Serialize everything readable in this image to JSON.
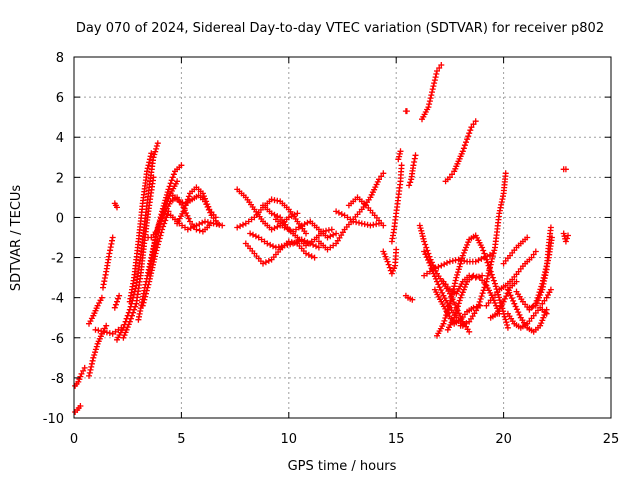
{
  "chart_data": {
    "type": "scatter",
    "title": "Day 070 of 2024, Sidereal Day-to-day VTEC variation (SDTVAR) for receiver p802",
    "xlabel": "GPS time / hours",
    "ylabel": "SDTVAR / TECUs",
    "xlim": [
      0,
      25
    ],
    "ylim": [
      -10,
      8
    ],
    "xticks": [
      0,
      5,
      10,
      15,
      20,
      25
    ],
    "yticks": [
      -10,
      -8,
      -6,
      -4,
      -2,
      0,
      2,
      4,
      6,
      8
    ],
    "grid": true,
    "marker": "plus",
    "color": "#ff0000",
    "tracks": [
      [
        [
          0.05,
          -9.7
        ],
        [
          0.15,
          -9.6
        ],
        [
          0.3,
          -9.4
        ]
      ],
      [
        [
          0.05,
          -8.4
        ],
        [
          0.2,
          -8.2
        ],
        [
          0.35,
          -7.8
        ],
        [
          0.5,
          -7.5
        ]
      ],
      [
        [
          0.7,
          -7.9
        ],
        [
          0.9,
          -7.0
        ],
        [
          1.1,
          -6.3
        ],
        [
          1.3,
          -5.8
        ],
        [
          1.5,
          -5.4
        ]
      ],
      [
        [
          0.7,
          -5.3
        ],
        [
          0.9,
          -4.9
        ],
        [
          1.1,
          -4.4
        ],
        [
          1.3,
          -4.0
        ]
      ],
      [
        [
          1.35,
          -3.5
        ],
        [
          1.5,
          -2.7
        ],
        [
          1.65,
          -1.8
        ],
        [
          1.8,
          -1.0
        ]
      ],
      [
        [
          1.0,
          -5.6
        ],
        [
          1.4,
          -5.7
        ],
        [
          1.8,
          -5.8
        ],
        [
          2.2,
          -5.5
        ]
      ],
      [
        [
          1.9,
          -4.5
        ],
        [
          2.0,
          -4.2
        ],
        [
          2.1,
          -3.9
        ]
      ],
      [
        [
          1.9,
          0.7
        ],
        [
          2.0,
          0.5
        ]
      ],
      [
        [
          2.0,
          -6.1
        ],
        [
          2.3,
          -5.5
        ],
        [
          2.6,
          -4.6
        ],
        [
          2.9,
          -3.4
        ],
        [
          3.1,
          -2.0
        ],
        [
          3.3,
          -0.2
        ],
        [
          3.5,
          1.5
        ],
        [
          3.7,
          3.0
        ],
        [
          3.9,
          3.7
        ]
      ],
      [
        [
          2.3,
          -6.0
        ],
        [
          2.6,
          -5.2
        ],
        [
          2.9,
          -4.3
        ],
        [
          3.1,
          -2.9
        ],
        [
          3.3,
          -1.0
        ],
        [
          3.5,
          0.6
        ],
        [
          3.7,
          2.0
        ]
      ],
      [
        [
          2.6,
          -4.2
        ],
        [
          2.8,
          -3.0
        ],
        [
          3.0,
          -1.2
        ],
        [
          3.2,
          0.7
        ],
        [
          3.4,
          2.3
        ],
        [
          3.6,
          3.2
        ]
      ],
      [
        [
          3.0,
          -5.1
        ],
        [
          3.3,
          -3.5
        ],
        [
          3.6,
          -2.0
        ],
        [
          3.9,
          -0.5
        ],
        [
          4.2,
          0.4
        ],
        [
          4.5,
          1.2
        ],
        [
          4.8,
          1.8
        ]
      ],
      [
        [
          3.2,
          -4.4
        ],
        [
          3.5,
          -3.2
        ],
        [
          3.8,
          -1.8
        ],
        [
          4.1,
          -0.6
        ],
        [
          4.4,
          0.3
        ]
      ],
      [
        [
          3.5,
          -2.8
        ],
        [
          3.8,
          -1.0
        ],
        [
          4.1,
          0.3
        ],
        [
          4.4,
          1.4
        ],
        [
          4.7,
          2.3
        ],
        [
          5.0,
          2.6
        ]
      ],
      [
        [
          3.3,
          -1.0
        ],
        [
          3.6,
          -1.0
        ],
        [
          3.9,
          -0.6
        ],
        [
          4.2,
          0.2
        ],
        [
          4.5,
          0.8
        ],
        [
          4.8,
          1.0
        ],
        [
          5.1,
          0.5
        ],
        [
          5.4,
          -0.2
        ],
        [
          5.7,
          -0.6
        ],
        [
          6.0,
          -0.7
        ],
        [
          6.3,
          -0.4
        ]
      ],
      [
        [
          4.6,
          1.1
        ],
        [
          4.9,
          0.8
        ],
        [
          5.2,
          0.7
        ],
        [
          5.5,
          0.9
        ],
        [
          5.8,
          1.1
        ],
        [
          6.1,
          0.8
        ],
        [
          6.4,
          0.1
        ],
        [
          6.7,
          -0.3
        ]
      ],
      [
        [
          4.8,
          -0.3
        ],
        [
          5.1,
          0.3
        ],
        [
          5.4,
          1.2
        ],
        [
          5.7,
          1.5
        ],
        [
          6.0,
          1.2
        ],
        [
          6.3,
          0.4
        ],
        [
          6.6,
          0.0
        ]
      ],
      [
        [
          4.5,
          0.1
        ],
        [
          4.9,
          -0.3
        ],
        [
          5.3,
          -0.6
        ],
        [
          5.7,
          -0.4
        ],
        [
          6.1,
          -0.2
        ],
        [
          6.5,
          -0.3
        ],
        [
          6.9,
          -0.4
        ]
      ],
      [
        [
          7.6,
          1.4
        ],
        [
          8.0,
          1.0
        ],
        [
          8.4,
          0.4
        ],
        [
          8.8,
          -0.2
        ],
        [
          9.2,
          -0.6
        ],
        [
          9.6,
          -0.4
        ],
        [
          10.0,
          0.0
        ],
        [
          10.4,
          0.2
        ]
      ],
      [
        [
          7.6,
          -0.5
        ],
        [
          8.0,
          -0.3
        ],
        [
          8.4,
          0.0
        ],
        [
          8.8,
          0.5
        ],
        [
          9.2,
          0.9
        ],
        [
          9.6,
          0.8
        ],
        [
          10.0,
          0.4
        ],
        [
          10.4,
          -0.2
        ],
        [
          10.8,
          -0.8
        ]
      ],
      [
        [
          8.0,
          -1.3
        ],
        [
          8.4,
          -1.8
        ],
        [
          8.8,
          -2.3
        ],
        [
          9.2,
          -2.1
        ],
        [
          9.6,
          -1.6
        ],
        [
          10.0,
          -1.2
        ],
        [
          10.4,
          -1.3
        ],
        [
          10.8,
          -1.8
        ],
        [
          11.2,
          -2.0
        ]
      ],
      [
        [
          8.2,
          -0.8
        ],
        [
          8.6,
          -1.0
        ],
        [
          9.0,
          -1.3
        ],
        [
          9.4,
          -1.5
        ],
        [
          9.8,
          -1.4
        ],
        [
          10.2,
          -1.3
        ],
        [
          10.6,
          -1.1
        ],
        [
          11.0,
          -1.3
        ],
        [
          11.4,
          -1.5
        ]
      ],
      [
        [
          9.4,
          -0.1
        ],
        [
          9.8,
          -0.5
        ],
        [
          10.2,
          -0.7
        ],
        [
          10.6,
          -0.4
        ],
        [
          11.0,
          -0.2
        ],
        [
          11.4,
          -0.6
        ],
        [
          11.8,
          -1.0
        ],
        [
          12.2,
          -0.8
        ]
      ],
      [
        [
          8.8,
          0.6
        ],
        [
          9.2,
          0.2
        ],
        [
          9.6,
          0.0
        ],
        [
          10.0,
          -0.6
        ],
        [
          10.4,
          -1.0
        ],
        [
          10.8,
          -1.4
        ],
        [
          11.2,
          -1.1
        ],
        [
          11.6,
          -0.7
        ],
        [
          12.0,
          -0.6
        ]
      ],
      [
        [
          11.4,
          -1.2
        ],
        [
          11.8,
          -1.6
        ],
        [
          12.2,
          -1.3
        ],
        [
          12.6,
          -0.6
        ],
        [
          13.0,
          -0.1
        ],
        [
          13.4,
          0.4
        ],
        [
          13.8,
          1.0
        ],
        [
          14.2,
          1.9
        ],
        [
          14.4,
          2.2
        ]
      ],
      [
        [
          12.2,
          0.3
        ],
        [
          12.6,
          0.1
        ],
        [
          13.0,
          -0.2
        ],
        [
          13.4,
          -0.3
        ],
        [
          13.8,
          -0.4
        ],
        [
          14.2,
          -0.3
        ]
      ],
      [
        [
          12.8,
          0.6
        ],
        [
          13.2,
          1.0
        ],
        [
          13.6,
          0.6
        ],
        [
          14.0,
          0.1
        ],
        [
          14.4,
          -0.4
        ]
      ],
      [
        [
          14.4,
          -1.7
        ],
        [
          14.6,
          -2.2
        ],
        [
          14.8,
          -2.8
        ],
        [
          14.95,
          -2.4
        ],
        [
          15.0,
          -1.6
        ]
      ],
      [
        [
          14.8,
          -1.2
        ],
        [
          14.9,
          -0.6
        ],
        [
          15.0,
          0.2
        ],
        [
          15.1,
          1.0
        ],
        [
          15.2,
          1.8
        ],
        [
          15.25,
          2.6
        ]
      ],
      [
        [
          15.2,
          3.3
        ],
        [
          15.1,
          2.9
        ]
      ],
      [
        [
          15.45,
          5.3
        ],
        [
          15.5,
          5.3
        ]
      ],
      [
        [
          15.45,
          -3.9
        ],
        [
          15.55,
          -4.0
        ],
        [
          15.75,
          -4.1
        ]
      ],
      [
        [
          15.6,
          1.6
        ],
        [
          15.7,
          1.9
        ],
        [
          15.8,
          2.6
        ],
        [
          15.9,
          3.1
        ]
      ],
      [
        [
          16.2,
          4.9
        ],
        [
          16.5,
          5.5
        ],
        [
          16.7,
          6.4
        ],
        [
          16.9,
          7.3
        ],
        [
          17.1,
          7.6
        ]
      ],
      [
        [
          16.1,
          -0.4
        ],
        [
          16.3,
          -1.2
        ],
        [
          16.6,
          -2.1
        ],
        [
          16.9,
          -2.8
        ],
        [
          17.2,
          -3.3
        ],
        [
          17.5,
          -3.8
        ],
        [
          17.8,
          -4.5
        ],
        [
          18.1,
          -5.2
        ],
        [
          18.4,
          -5.7
        ]
      ],
      [
        [
          16.3,
          -1.7
        ],
        [
          16.6,
          -2.4
        ],
        [
          16.9,
          -3.2
        ],
        [
          17.2,
          -3.9
        ],
        [
          17.5,
          -4.5
        ],
        [
          17.8,
          -5.0
        ],
        [
          18.1,
          -5.4
        ]
      ],
      [
        [
          16.3,
          -2.9
        ],
        [
          16.7,
          -2.6
        ],
        [
          17.1,
          -2.4
        ],
        [
          17.5,
          -2.2
        ],
        [
          17.9,
          -2.1
        ],
        [
          18.3,
          -2.2
        ],
        [
          18.7,
          -2.2
        ],
        [
          19.1,
          -2.0
        ],
        [
          19.5,
          -1.8
        ]
      ],
      [
        [
          16.8,
          -3.6
        ],
        [
          17.1,
          -4.2
        ],
        [
          17.4,
          -4.8
        ],
        [
          17.7,
          -5.3
        ],
        [
          18.0,
          -5.1
        ],
        [
          18.3,
          -4.7
        ],
        [
          18.6,
          -4.5
        ],
        [
          18.9,
          -4.4
        ]
      ],
      [
        [
          16.9,
          -5.9
        ],
        [
          17.2,
          -5.3
        ],
        [
          17.5,
          -4.3
        ],
        [
          17.8,
          -3.0
        ],
        [
          18.1,
          -1.9
        ],
        [
          18.4,
          -1.1
        ],
        [
          18.7,
          -0.9
        ],
        [
          19.0,
          -1.5
        ],
        [
          19.3,
          -2.4
        ],
        [
          19.6,
          -3.3
        ],
        [
          19.9,
          -4.4
        ],
        [
          20.2,
          -5.5
        ]
      ],
      [
        [
          17.2,
          -3.2
        ],
        [
          17.5,
          -3.6
        ],
        [
          17.8,
          -3.8
        ],
        [
          18.1,
          -3.2
        ],
        [
          18.4,
          -2.9
        ],
        [
          18.7,
          -3.0
        ],
        [
          19.0,
          -2.9
        ]
      ],
      [
        [
          17.4,
          -5.6
        ],
        [
          17.7,
          -5.0
        ],
        [
          18.0,
          -4.0
        ],
        [
          18.3,
          -3.2
        ],
        [
          18.6,
          -2.9
        ],
        [
          18.9,
          -3.0
        ],
        [
          19.2,
          -3.4
        ],
        [
          19.5,
          -4.0
        ],
        [
          19.8,
          -4.8
        ]
      ],
      [
        [
          17.3,
          1.8
        ],
        [
          17.5,
          2.0
        ],
        [
          17.7,
          2.3
        ],
        [
          17.9,
          2.8
        ],
        [
          18.1,
          3.3
        ],
        [
          18.3,
          3.9
        ],
        [
          18.5,
          4.5
        ],
        [
          18.7,
          4.8
        ]
      ],
      [
        [
          18.0,
          -5.4
        ],
        [
          18.4,
          -5.2
        ],
        [
          18.8,
          -4.5
        ],
        [
          19.2,
          -3.2
        ],
        [
          19.6,
          -1.5
        ],
        [
          19.8,
          0.2
        ],
        [
          20.0,
          1.2
        ],
        [
          20.1,
          2.2
        ]
      ],
      [
        [
          19.2,
          -4.4
        ],
        [
          19.5,
          -4.0
        ],
        [
          19.8,
          -3.6
        ],
        [
          20.1,
          -3.4
        ],
        [
          20.4,
          -3.1
        ],
        [
          20.7,
          -2.7
        ],
        [
          21.0,
          -2.3
        ],
        [
          21.3,
          -2.0
        ],
        [
          21.5,
          -1.7
        ]
      ],
      [
        [
          19.4,
          -5.0
        ],
        [
          19.7,
          -4.8
        ],
        [
          20.0,
          -4.2
        ],
        [
          20.3,
          -3.5
        ],
        [
          20.6,
          -3.2
        ]
      ],
      [
        [
          20.0,
          -2.3
        ],
        [
          20.3,
          -1.9
        ],
        [
          20.6,
          -1.5
        ],
        [
          20.9,
          -1.2
        ],
        [
          21.1,
          -1.0
        ]
      ],
      [
        [
          20.2,
          -4.8
        ],
        [
          20.5,
          -5.3
        ],
        [
          20.8,
          -5.5
        ],
        [
          21.1,
          -5.3
        ],
        [
          21.4,
          -4.9
        ],
        [
          21.7,
          -4.5
        ],
        [
          22.0,
          -4.8
        ]
      ],
      [
        [
          20.2,
          -3.6
        ],
        [
          20.5,
          -4.3
        ],
        [
          20.8,
          -5.0
        ],
        [
          21.1,
          -5.5
        ],
        [
          21.4,
          -5.7
        ],
        [
          21.7,
          -5.4
        ],
        [
          22.0,
          -4.6
        ]
      ],
      [
        [
          20.6,
          -3.7
        ],
        [
          20.9,
          -4.2
        ],
        [
          21.2,
          -4.6
        ],
        [
          21.5,
          -4.3
        ],
        [
          21.8,
          -3.3
        ],
        [
          22.1,
          -2.0
        ],
        [
          22.25,
          -1.0
        ]
      ],
      [
        [
          21.2,
          -4.5
        ],
        [
          21.5,
          -4.4
        ],
        [
          21.8,
          -3.6
        ],
        [
          22.0,
          -2.6
        ],
        [
          22.1,
          -1.4
        ],
        [
          22.2,
          -0.5
        ]
      ],
      [
        [
          21.8,
          -4.3
        ],
        [
          22.0,
          -4.0
        ],
        [
          22.2,
          -3.6
        ]
      ],
      [
        [
          22.8,
          2.4
        ],
        [
          22.9,
          2.4
        ]
      ],
      [
        [
          22.8,
          -0.8
        ],
        [
          22.9,
          -1.2
        ],
        [
          23.0,
          -0.9
        ]
      ]
    ]
  }
}
